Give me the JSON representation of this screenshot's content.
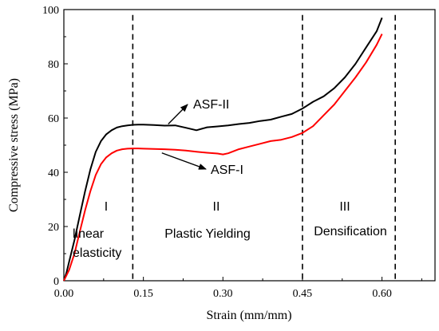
{
  "chart_data": {
    "type": "line",
    "xlabel": "Strain (mm/mm)",
    "ylabel": "Compressive stress (MPa)",
    "xlim": [
      0.0,
      0.7
    ],
    "ylim": [
      0,
      100
    ],
    "x_ticks": [
      0.0,
      0.15,
      0.3,
      0.45,
      0.6
    ],
    "x_tick_labels": [
      "0.00",
      "0.15",
      "0.30",
      "0.45",
      "0.60"
    ],
    "y_ticks": [
      0,
      20,
      40,
      60,
      80,
      100
    ],
    "y_tick_labels": [
      "0",
      "20",
      "40",
      "60",
      "80",
      "100"
    ],
    "grid": false,
    "series": [
      {
        "name": "ASF-II",
        "color": "#000000",
        "x": [
          0.0,
          0.005,
          0.01,
          0.02,
          0.03,
          0.04,
          0.05,
          0.06,
          0.07,
          0.08,
          0.09,
          0.1,
          0.11,
          0.12,
          0.13,
          0.14,
          0.15,
          0.17,
          0.19,
          0.21,
          0.23,
          0.25,
          0.27,
          0.29,
          0.31,
          0.33,
          0.35,
          0.37,
          0.39,
          0.41,
          0.43,
          0.45,
          0.47,
          0.49,
          0.51,
          0.53,
          0.55,
          0.57,
          0.59,
          0.6
        ],
        "y": [
          0,
          3,
          7,
          15,
          24,
          33,
          41,
          47.5,
          51.5,
          54,
          55.5,
          56.5,
          57,
          57.3,
          57.5,
          57.6,
          57.6,
          57.4,
          57.2,
          57.3,
          56.4,
          55.5,
          56.6,
          56.9,
          57.3,
          57.8,
          58.2,
          58.9,
          59.4,
          60.5,
          61.5,
          63.5,
          66,
          68,
          71,
          75,
          80,
          86,
          92,
          97
        ]
      },
      {
        "name": "ASF-I",
        "color": "#ff0000",
        "x": [
          0.0,
          0.01,
          0.02,
          0.03,
          0.04,
          0.05,
          0.06,
          0.07,
          0.08,
          0.09,
          0.1,
          0.11,
          0.12,
          0.13,
          0.14,
          0.15,
          0.17,
          0.19,
          0.21,
          0.23,
          0.25,
          0.27,
          0.29,
          0.3,
          0.31,
          0.33,
          0.35,
          0.37,
          0.39,
          0.41,
          0.43,
          0.45,
          0.47,
          0.49,
          0.51,
          0.53,
          0.55,
          0.57,
          0.59,
          0.6
        ],
        "y": [
          0,
          4,
          10,
          18,
          26,
          33,
          39,
          43,
          45.5,
          47,
          48,
          48.5,
          48.7,
          48.8,
          48.8,
          48.7,
          48.6,
          48.5,
          48.3,
          48,
          47.6,
          47.2,
          46.9,
          46.6,
          47,
          48.5,
          49.5,
          50.5,
          51.5,
          52,
          53,
          54.5,
          57,
          61,
          65,
          70,
          75,
          80.5,
          87,
          91
        ]
      }
    ],
    "region_lines_x": [
      0.13,
      0.45,
      0.625
    ],
    "region_labels": [
      {
        "roman": "I",
        "desc": "linear\nelasticity"
      },
      {
        "roman": "II",
        "desc": "Plastic Yielding"
      },
      {
        "roman": "III",
        "desc": "Densification"
      }
    ],
    "annotations": [
      {
        "text": "ASF-II",
        "arrow_to": [
          0.23,
          57.5
        ]
      },
      {
        "text": "ASF-I",
        "arrow_to": [
          0.23,
          48.3
        ]
      }
    ]
  }
}
